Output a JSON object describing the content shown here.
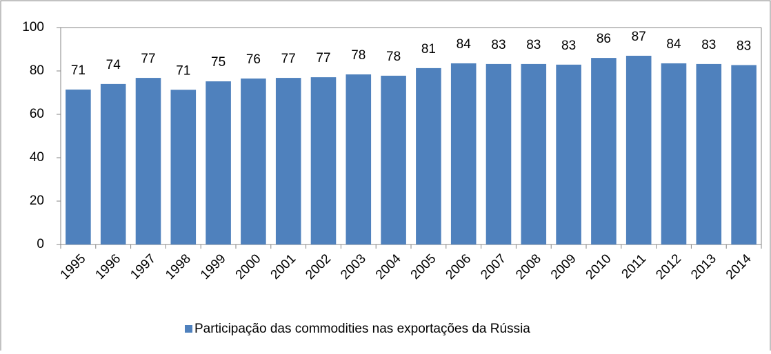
{
  "chart_data": {
    "type": "bar",
    "categories": [
      "1995",
      "1996",
      "1997",
      "1998",
      "1999",
      "2000",
      "2001",
      "2002",
      "2003",
      "2004",
      "2005",
      "2006",
      "2007",
      "2008",
      "2009",
      "2010",
      "2011",
      "2012",
      "2013",
      "2014"
    ],
    "series": [
      {
        "name": "Participação das commodities nas exportações da Rússia",
        "color": "#4f81bd",
        "values": [
          71.4,
          74.0,
          76.8,
          71.3,
          75.2,
          76.5,
          76.8,
          77.1,
          78.4,
          77.8,
          81.3,
          83.5,
          83.2,
          83.2,
          82.9,
          86.0,
          87.0,
          83.5,
          83.2,
          82.7
        ],
        "value_labels": [
          "71",
          "74",
          "77",
          "71",
          "75",
          "76",
          "77",
          "77",
          "78",
          "78",
          "81",
          "84",
          "83",
          "83",
          "83",
          "86",
          "87",
          "84",
          "83",
          "83"
        ]
      }
    ],
    "ylim": [
      0,
      100
    ],
    "yticks": [
      0,
      20,
      40,
      60,
      80,
      100
    ],
    "grid": false,
    "legend": "bottom"
  }
}
